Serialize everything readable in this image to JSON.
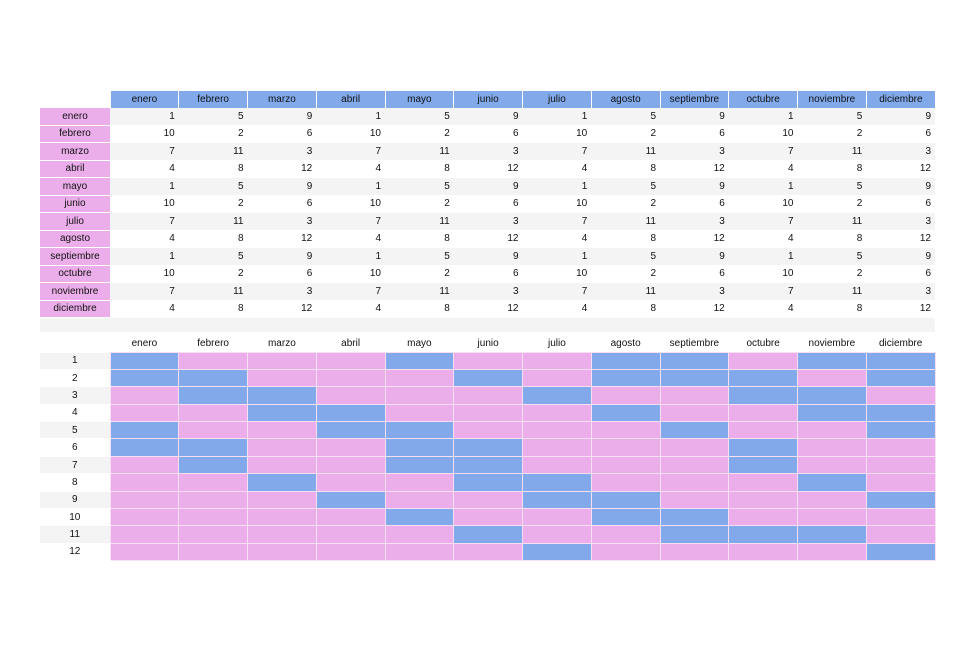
{
  "colors": {
    "header_blue": "#82aaea",
    "row_pink": "#ecaeea",
    "stripe_gray": "#f4f4f4"
  },
  "months": [
    "enero",
    "febrero",
    "marzo",
    "abril",
    "mayo",
    "junio",
    "julio",
    "agosto",
    "septiembre",
    "octubre",
    "noviembre",
    "diciembre"
  ],
  "top_table": {
    "rows": [
      {
        "label": "enero",
        "values": [
          "1",
          "5",
          "9",
          "1",
          "5",
          "9",
          "1",
          "5",
          "9",
          "1",
          "5",
          "9"
        ]
      },
      {
        "label": "febrero",
        "values": [
          "10",
          "2",
          "6",
          "10",
          "2",
          "6",
          "10",
          "2",
          "6",
          "10",
          "2",
          "6"
        ]
      },
      {
        "label": "marzo",
        "values": [
          "7",
          "11",
          "3",
          "7",
          "11",
          "3",
          "7",
          "11",
          "3",
          "7",
          "11",
          "3"
        ]
      },
      {
        "label": "abril",
        "values": [
          "4",
          "8",
          "12",
          "4",
          "8",
          "12",
          "4",
          "8",
          "12",
          "4",
          "8",
          "12"
        ]
      },
      {
        "label": "mayo",
        "values": [
          "1",
          "5",
          "9",
          "1",
          "5",
          "9",
          "1",
          "5",
          "9",
          "1",
          "5",
          "9"
        ]
      },
      {
        "label": "junio",
        "values": [
          "10",
          "2",
          "6",
          "10",
          "2",
          "6",
          "10",
          "2",
          "6",
          "10",
          "2",
          "6"
        ]
      },
      {
        "label": "julio",
        "values": [
          "7",
          "11",
          "3",
          "7",
          "11",
          "3",
          "7",
          "11",
          "3",
          "7",
          "11",
          "3"
        ]
      },
      {
        "label": "agosto",
        "values": [
          "4",
          "8",
          "12",
          "4",
          "8",
          "12",
          "4",
          "8",
          "12",
          "4",
          "8",
          "12"
        ]
      },
      {
        "label": "septiembre",
        "values": [
          "1",
          "5",
          "9",
          "1",
          "5",
          "9",
          "1",
          "5",
          "9",
          "1",
          "5",
          "9"
        ]
      },
      {
        "label": "octubre",
        "values": [
          "10",
          "2",
          "6",
          "10",
          "2",
          "6",
          "10",
          "2",
          "6",
          "10",
          "2",
          "6"
        ]
      },
      {
        "label": "noviembre",
        "values": [
          "7",
          "11",
          "3",
          "7",
          "11",
          "3",
          "7",
          "11",
          "3",
          "7",
          "11",
          "3"
        ]
      },
      {
        "label": "diciembre",
        "values": [
          "4",
          "8",
          "12",
          "4",
          "8",
          "12",
          "4",
          "8",
          "12",
          "4",
          "8",
          "12"
        ]
      }
    ]
  },
  "bottom_table": {
    "row_labels": [
      "1",
      "2",
      "3",
      "4",
      "5",
      "6",
      "7",
      "8",
      "9",
      "10",
      "11",
      "12"
    ],
    "grid": [
      [
        "B",
        "P",
        "P",
        "P",
        "B",
        "P",
        "P",
        "B",
        "B",
        "P",
        "B",
        "B"
      ],
      [
        "B",
        "B",
        "P",
        "P",
        "P",
        "B",
        "P",
        "B",
        "B",
        "B",
        "P",
        "B"
      ],
      [
        "P",
        "B",
        "B",
        "P",
        "P",
        "P",
        "B",
        "P",
        "P",
        "B",
        "B",
        "P"
      ],
      [
        "P",
        "P",
        "B",
        "B",
        "P",
        "P",
        "P",
        "B",
        "P",
        "P",
        "B",
        "B"
      ],
      [
        "B",
        "P",
        "P",
        "B",
        "B",
        "P",
        "P",
        "P",
        "B",
        "P",
        "P",
        "B"
      ],
      [
        "B",
        "B",
        "P",
        "P",
        "B",
        "B",
        "P",
        "P",
        "P",
        "B",
        "P",
        "P"
      ],
      [
        "P",
        "B",
        "P",
        "P",
        "B",
        "B",
        "P",
        "P",
        "P",
        "B",
        "P",
        "P"
      ],
      [
        "P",
        "P",
        "B",
        "P",
        "P",
        "B",
        "B",
        "P",
        "P",
        "P",
        "B",
        "P"
      ],
      [
        "P",
        "P",
        "P",
        "B",
        "P",
        "P",
        "B",
        "B",
        "P",
        "P",
        "P",
        "B"
      ],
      [
        "P",
        "P",
        "P",
        "P",
        "B",
        "P",
        "P",
        "B",
        "B",
        "P",
        "P",
        "P"
      ],
      [
        "P",
        "P",
        "P",
        "P",
        "P",
        "B",
        "P",
        "P",
        "B",
        "B",
        "B",
        "P"
      ],
      [
        "P",
        "P",
        "P",
        "P",
        "P",
        "P",
        "B",
        "P",
        "P",
        "P",
        "P",
        "B"
      ]
    ]
  }
}
